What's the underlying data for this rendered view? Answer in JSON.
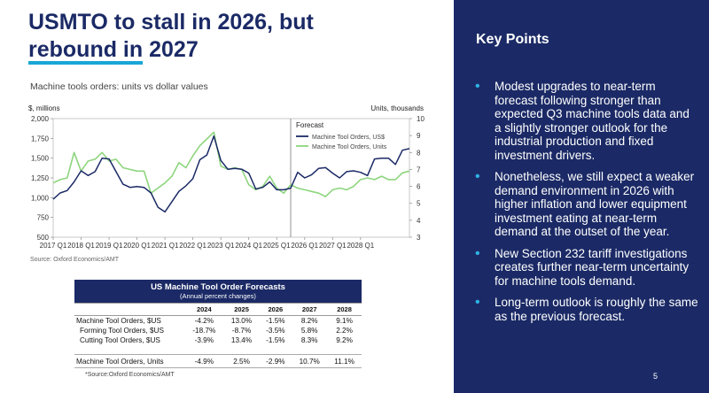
{
  "title": {
    "line1": "USMTO to stall in 2026, but",
    "line2_underlined": "rebound in",
    "line2_rest": " 2027"
  },
  "chart_data": {
    "type": "line",
    "title": "Machine tools orders: units vs dollar values",
    "left_axis_label": "$, millions",
    "right_axis_label": "Units, thousands",
    "left_ylim": [
      500,
      2000
    ],
    "right_ylim": [
      3,
      10
    ],
    "left_ticks": [
      "500",
      "750",
      "1,000",
      "1,250",
      "1,500",
      "1,750",
      "2,000"
    ],
    "right_ticks": [
      "3",
      "4",
      "5",
      "6",
      "7",
      "8",
      "9",
      "10"
    ],
    "x_tick_labels": [
      "2017 Q1",
      "2018 Q1",
      "2019 Q1",
      "2020 Q1",
      "2021 Q1",
      "2022 Q1",
      "2023 Q1",
      "2024 Q1",
      "2025 Q1",
      "2026 Q1",
      "2027 Q1",
      "2028 Q1"
    ],
    "forecast_label": "Forecast",
    "forecast_start_index": 34,
    "series": [
      {
        "name": "Machine Tool Orders, US$",
        "axis": "left",
        "color": "#1b2a66",
        "values": [
          980,
          1060,
          1090,
          1200,
          1340,
          1280,
          1330,
          1500,
          1490,
          1330,
          1170,
          1130,
          1140,
          1130,
          1060,
          880,
          820,
          950,
          1080,
          1150,
          1240,
          1480,
          1540,
          1780,
          1470,
          1360,
          1370,
          1360,
          1310,
          1110,
          1130,
          1200,
          1100,
          1100,
          1120,
          1320,
          1250,
          1290,
          1370,
          1380,
          1310,
          1250,
          1330,
          1340,
          1320,
          1280,
          1490,
          1500,
          1500,
          1420,
          1600,
          1620
        ]
      },
      {
        "name": "Machine Tool Orders, Units",
        "axis": "right",
        "color": "#8dd57d",
        "values": [
          6.2,
          6.4,
          6.5,
          8.0,
          6.9,
          7.5,
          7.6,
          8.0,
          7.5,
          7.6,
          7.1,
          7.0,
          6.9,
          6.9,
          5.6,
          5.9,
          6.2,
          6.6,
          7.4,
          7.1,
          7.8,
          8.4,
          8.8,
          9.2,
          7.2,
          7.0,
          7.1,
          7.0,
          6.1,
          5.8,
          6.0,
          6.6,
          5.9,
          5.6,
          6.1,
          5.9,
          5.8,
          5.7,
          5.6,
          5.4,
          5.8,
          5.9,
          5.8,
          6.0,
          6.4,
          6.5,
          6.4,
          6.6,
          6.4,
          6.4,
          6.8,
          6.9
        ]
      }
    ]
  },
  "source1": "Source: Oxford Economics/AMT",
  "table": {
    "title": "US Machine Tool Order Forecasts",
    "subtitle": "(Annual percent changes)",
    "years": [
      "2024",
      "2025",
      "2026",
      "2027",
      "2028"
    ],
    "rows": [
      {
        "label": "Machine Tool Orders, $US",
        "values": [
          "-4.2%",
          "13.0%",
          "-1.5%",
          "8.2%",
          "9.1%"
        ]
      },
      {
        "label": "Forming Tool Orders, $US",
        "values": [
          "-18.7%",
          "-8.7%",
          "-3.5%",
          "5.8%",
          "2.2%"
        ]
      },
      {
        "label": "Cutting Tool Orders, $US",
        "values": [
          "-3.9%",
          "13.4%",
          "-1.5%",
          "8.3%",
          "9.2%"
        ]
      }
    ],
    "last_row": {
      "label": "Machine Tool Orders, Units",
      "values": [
        "-4.9%",
        "2.5%",
        "-2.9%",
        "10.7%",
        "11.1%"
      ]
    }
  },
  "source2": "*Source:Oxford Economics/AMT",
  "panel": {
    "heading": "Key Points",
    "bullets": [
      "Modest upgrades to near-term forecast following stronger than expected Q3 machine tools data and a slightly stronger outlook for the industrial production and fixed investment drivers.",
      "Nonetheless, we still expect a weaker demand environment in 2026 with higher inflation and lower equipment investment eating at near-term demand at the outset of the year.",
      "New Section 232 tariff investigations creates further near-term uncertainty for machine tools demand.",
      "Long-term outlook is roughly the same as the previous forecast."
    ],
    "bullet_glyph": "•"
  },
  "page_number": "5",
  "colors": {
    "navy": "#1b2a66",
    "accent": "#19a7d6",
    "green": "#8dd57d"
  }
}
